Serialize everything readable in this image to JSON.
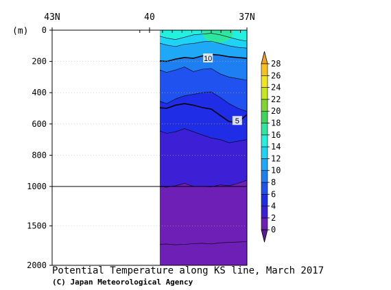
{
  "chart_data": {
    "type": "heatmap",
    "title": "Potential Temperature along KS line, March 2017",
    "credit": "(C) Japan Meteorological Agency",
    "ylabel": "(m)",
    "x_axis": {
      "ticks": [
        {
          "value": 43,
          "label": "43N"
        },
        {
          "value": 40,
          "label": "40"
        },
        {
          "value": 37,
          "label": "37N"
        }
      ],
      "range": [
        43,
        37
      ]
    },
    "y_axis": {
      "ticks": [
        {
          "value": 0,
          "label": "0"
        },
        {
          "value": 200,
          "label": "200"
        },
        {
          "value": 400,
          "label": "400"
        },
        {
          "value": 600,
          "label": "600"
        },
        {
          "value": 800,
          "label": "800"
        },
        {
          "value": 1000,
          "label": "1000"
        },
        {
          "value": 1500,
          "label": "1500"
        },
        {
          "value": 2000,
          "label": "2000"
        }
      ],
      "range": [
        0,
        2000
      ],
      "scale_change_at": 1000,
      "grid": "dotted"
    },
    "data_coverage_lat": [
      40.3,
      37.0
    ],
    "station_lats": [
      40.3,
      40.0,
      39.6,
      39.3,
      39.0,
      38.7,
      38.4,
      38.1,
      37.8,
      37.5,
      37.2
    ],
    "colorbar": {
      "levels": [
        0,
        2,
        4,
        6,
        8,
        10,
        12,
        14,
        16,
        18,
        20,
        22,
        24,
        26,
        28
      ],
      "labels": [
        "0",
        "2",
        "4",
        "6",
        "8",
        "10",
        "12",
        "14",
        "16",
        "18",
        "20",
        "22",
        "24",
        "26",
        "28"
      ],
      "colors": [
        "#6e1fb5",
        "#3d1fd6",
        "#1f2ee6",
        "#1f52ee",
        "#1e7ff2",
        "#1ea8f5",
        "#1fd3f7",
        "#24f0e0",
        "#2ee6a0",
        "#3ed65a",
        "#7fd62e",
        "#c8e61f",
        "#f2e61f",
        "#f5c21f",
        "#f59a1f"
      ],
      "under_color": "#5a1a96",
      "over_color": "#f5a21f"
    },
    "contour_labels": [
      {
        "value": 10,
        "label": "10",
        "lat": 38.2,
        "depth": 180
      },
      {
        "value": 5,
        "label": "5",
        "lat": 37.3,
        "depth": 580
      }
    ]
  }
}
